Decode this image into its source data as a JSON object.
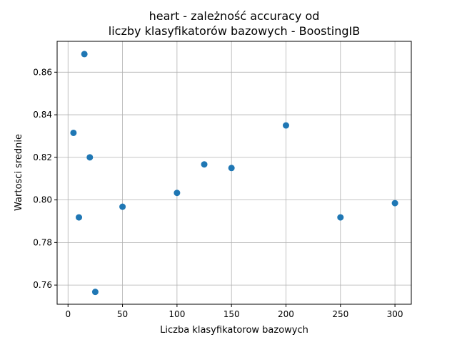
{
  "chart_data": {
    "type": "scatter",
    "title_lines": [
      "heart - zależność accuracy od",
      "liczby klasyfikatorów bazowych - BoostingIB"
    ],
    "xlabel": "Liczba klasyfikatorow bazowych",
    "ylabel": "Wartosci srednie",
    "xlim": [
      -10,
      315
    ],
    "ylim": [
      0.751,
      0.8745
    ],
    "xticks": [
      0,
      50,
      100,
      150,
      200,
      250,
      300
    ],
    "yticks": [
      0.76,
      0.78,
      0.8,
      0.82,
      0.84,
      0.86
    ],
    "ytick_labels": [
      "0.76",
      "0.78",
      "0.80",
      "0.82",
      "0.84",
      "0.86"
    ],
    "grid": true,
    "color": "#1f77b4",
    "points": [
      {
        "x": 5,
        "y": 0.8315
      },
      {
        "x": 10,
        "y": 0.7918
      },
      {
        "x": 15,
        "y": 0.8685
      },
      {
        "x": 20,
        "y": 0.82
      },
      {
        "x": 25,
        "y": 0.7568
      },
      {
        "x": 50,
        "y": 0.7968
      },
      {
        "x": 100,
        "y": 0.8033
      },
      {
        "x": 125,
        "y": 0.8167
      },
      {
        "x": 150,
        "y": 0.815
      },
      {
        "x": 200,
        "y": 0.835
      },
      {
        "x": 250,
        "y": 0.7918
      },
      {
        "x": 300,
        "y": 0.7985
      }
    ]
  }
}
